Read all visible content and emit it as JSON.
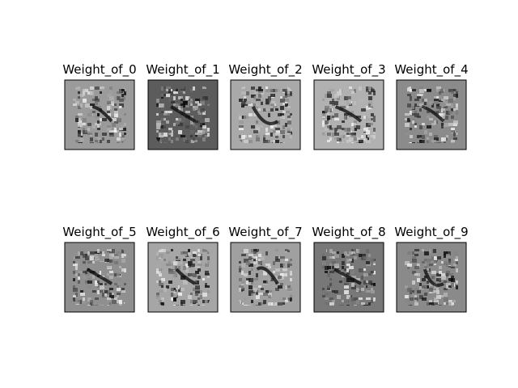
{
  "panels": [
    {
      "title": "Weight_of_0",
      "background": "#9b9b9b"
    },
    {
      "title": "Weight_of_1",
      "background": "#5c5c5c"
    },
    {
      "title": "Weight_of_2",
      "background": "#a9a9a9"
    },
    {
      "title": "Weight_of_3",
      "background": "#b1b1b1"
    },
    {
      "title": "Weight_of_4",
      "background": "#8b8b8b"
    },
    {
      "title": "Weight_of_5",
      "background": "#8f8f8f"
    },
    {
      "title": "Weight_of_6",
      "background": "#a6a6a6"
    },
    {
      "title": "Weight_of_7",
      "background": "#a0a0a0"
    },
    {
      "title": "Weight_of_8",
      "background": "#787878"
    },
    {
      "title": "Weight_of_9",
      "background": "#8a8a8a"
    }
  ]
}
